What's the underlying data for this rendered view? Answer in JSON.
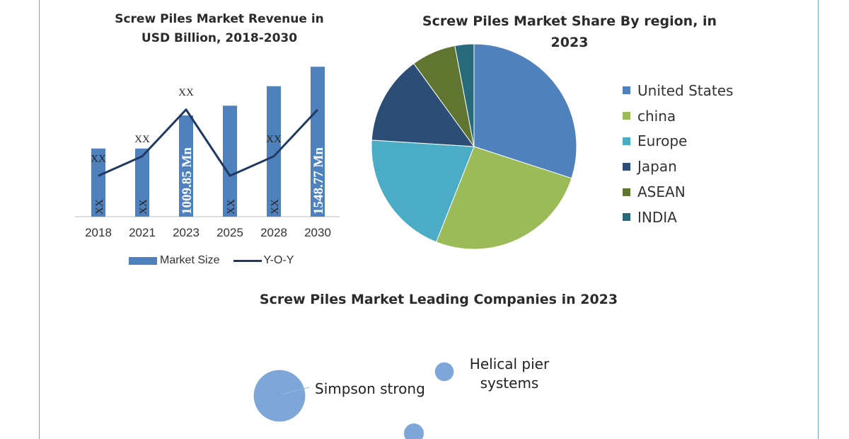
{
  "titles": {
    "bar": "Screw Piles Market Revenue in USD Billion, 2018-2030",
    "pie": "Screw Piles Market Share By region, in 2023",
    "bubble": "Screw Piles Market Leading Companies in 2023"
  },
  "chart_data": [
    {
      "type": "bar",
      "title": "Screw Piles Market Revenue in USD Billion, 2018-2030",
      "categories": [
        "2018",
        "2021",
        "2023",
        "2025",
        "2028",
        "2030"
      ],
      "series": [
        {
          "name": "Market Size",
          "type": "bar",
          "values": [
            35,
            35,
            52,
            57,
            67,
            77
          ],
          "labels": [
            "XX",
            "XX",
            "1009.85 Mn",
            "XX",
            "XX",
            "1548.77 Mn"
          ]
        },
        {
          "name": "Y-O-Y",
          "type": "line",
          "values": [
            21,
            31,
            55,
            21,
            31,
            55
          ],
          "labels": [
            "XX",
            "XX",
            "XX",
            "",
            "XX",
            ""
          ]
        }
      ],
      "ylim": [
        0,
        80
      ],
      "grid": false,
      "legend": "bottom"
    },
    {
      "type": "pie",
      "title": "Screw Piles Market Share By region, in 2023",
      "categories": [
        "United States",
        "china",
        "Europe",
        "Japan",
        "ASEAN",
        "INDIA"
      ],
      "values": [
        30,
        26,
        20,
        14,
        7,
        3
      ],
      "colors": [
        "#4f81bd",
        "#9bbb59",
        "#4bacc6",
        "#2c4d75",
        "#5f7530",
        "#276a7c"
      ],
      "legend": "right"
    },
    {
      "type": "bubble",
      "title": "Screw Piles Market Leading Companies in 2023",
      "points": [
        {
          "name": "Simpson strong",
          "label": "Simpson strong",
          "size": 5.2
        },
        {
          "name": "Helical pier systems",
          "label": "Helical pier\nsystems",
          "size": 1.9
        },
        {
          "name": "",
          "label": "",
          "size": 2.0
        }
      ]
    }
  ]
}
